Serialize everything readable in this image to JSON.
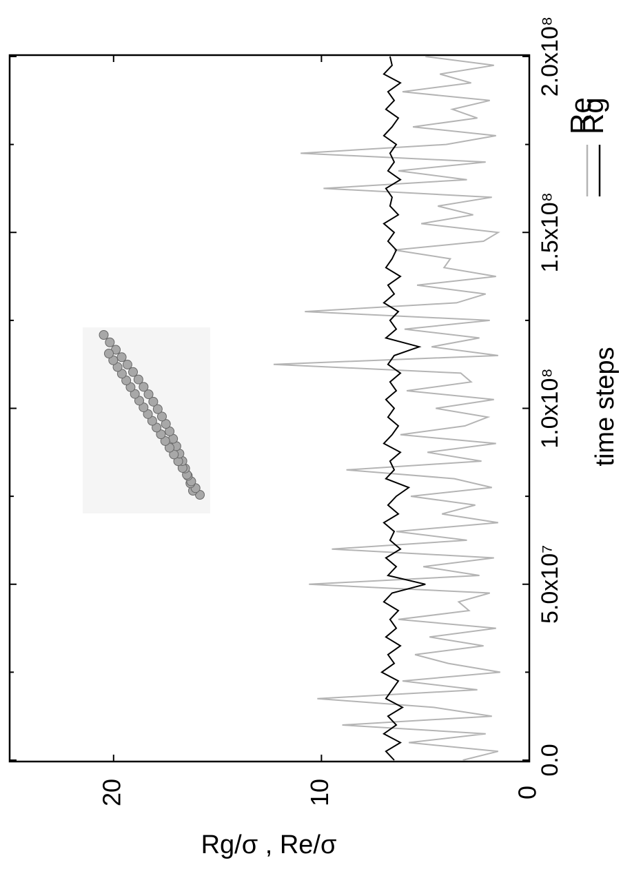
{
  "chart_data": {
    "type": "line",
    "x_label": "time steps",
    "y_label": "Rg/σ , Re/σ",
    "xlim": [
      0,
      200000000
    ],
    "xticks": [
      {
        "value": 0,
        "label": "0.0"
      },
      {
        "value": 50000000,
        "label": "5.0x10⁷"
      },
      {
        "value": 100000000,
        "label": "1.0x10⁸"
      },
      {
        "value": 150000000,
        "label": "1.5x10⁸"
      },
      {
        "value": 200000000,
        "label": "2.0x10⁸"
      }
    ],
    "xminor_ticks": [
      25000000,
      75000000,
      125000000,
      175000000
    ],
    "ylim": [
      0,
      25
    ],
    "yticks": [
      0,
      10,
      20
    ],
    "legend": "top-right",
    "x": [
      0,
      2500000,
      5000000,
      7500000,
      10000000,
      12500000,
      15000000,
      17500000,
      20000000,
      22500000,
      25000000,
      27500000,
      30000000,
      32500000,
      35000000,
      37500000,
      40000000,
      42500000,
      45000000,
      47500000,
      50000000,
      52500000,
      55000000,
      57500000,
      60000000,
      62500000,
      65000000,
      67500000,
      70000000,
      72500000,
      75000000,
      77500000,
      80000000,
      82500000,
      85000000,
      87500000,
      90000000,
      92500000,
      95000000,
      97500000,
      100000000,
      102500000,
      105000000,
      107500000,
      110000000,
      112500000,
      115000000,
      117500000,
      120000000,
      122500000,
      125000000,
      127500000,
      130000000,
      132500000,
      135000000,
      137500000,
      140000000,
      142500000,
      145000000,
      147500000,
      150000000,
      152500000,
      155000000,
      157500000,
      160000000,
      162500000,
      165000000,
      167500000,
      170000000,
      172500000,
      175000000,
      177500000,
      180000000,
      182500000,
      185000000,
      187500000,
      190000000,
      192500000,
      195000000,
      197500000,
      200000000
    ],
    "series": [
      {
        "name": "Re",
        "color": "#b4b4b4",
        "values": [
          3.2,
          1.5,
          5.8,
          2.1,
          9.0,
          1.8,
          4.6,
          10.2,
          2.5,
          6.1,
          1.4,
          3.9,
          5.5,
          2.2,
          4.8,
          1.6,
          6.3,
          2.9,
          3.4,
          1.9,
          10.6,
          2.4,
          5.1,
          1.7,
          9.5,
          3.0,
          6.4,
          1.5,
          4.2,
          2.6,
          5.7,
          1.8,
          3.6,
          8.8,
          2.3,
          4.9,
          1.6,
          6.2,
          3.1,
          2.0,
          4.5,
          1.7,
          5.9,
          2.8,
          3.3,
          12.3,
          1.5,
          4.7,
          2.4,
          6.0,
          1.9,
          10.8,
          3.5,
          2.1,
          5.4,
          1.6,
          4.1,
          3.8,
          6.5,
          2.2,
          1.5,
          5.2,
          2.7,
          4.4,
          1.8,
          9.9,
          3.0,
          6.3,
          2.1,
          11.0,
          4.0,
          1.6,
          5.6,
          2.5,
          3.7,
          1.9,
          6.1,
          2.8,
          4.3,
          1.7,
          5.0
        ]
      },
      {
        "name": "Rg",
        "color": "#000000",
        "values": [
          6.5,
          6.9,
          6.2,
          7.0,
          6.4,
          6.8,
          6.1,
          6.9,
          6.6,
          6.3,
          7.1,
          6.5,
          6.8,
          6.2,
          6.9,
          6.4,
          6.7,
          6.3,
          7.0,
          6.6,
          5.0,
          6.8,
          6.4,
          6.9,
          6.2,
          6.7,
          6.5,
          7.0,
          6.3,
          6.8,
          6.4,
          5.8,
          6.9,
          6.5,
          6.7,
          6.2,
          7.0,
          6.6,
          6.3,
          6.8,
          6.5,
          6.9,
          6.4,
          6.7,
          6.2,
          6.8,
          6.5,
          5.3,
          6.9,
          6.4,
          6.7,
          6.3,
          7.0,
          6.5,
          6.8,
          6.2,
          6.9,
          6.6,
          6.4,
          6.8,
          6.5,
          7.0,
          6.3,
          6.7,
          6.6,
          6.9,
          6.2,
          6.8,
          6.5,
          6.7,
          6.4,
          7.0,
          6.6,
          6.3,
          6.9,
          6.5,
          6.8,
          6.2,
          7.0,
          6.6,
          6.7
        ]
      }
    ]
  }
}
